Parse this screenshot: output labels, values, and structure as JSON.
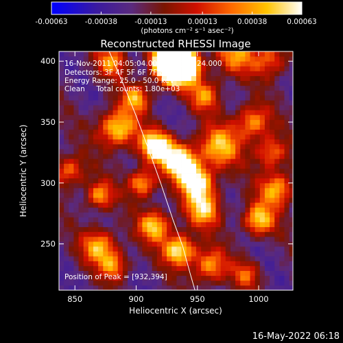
{
  "chart_data": {
    "type": "heatmap",
    "title": "Reconstructed RHESSI Image",
    "xlabel": "Heliocentric X (arcsec)",
    "ylabel": "Heliocentric Y (arcsec)",
    "xlim": [
      837,
      1028
    ],
    "ylim": [
      212,
      408
    ],
    "xticks": [
      850,
      900,
      950,
      1000
    ],
    "xtick_labels": [
      "850",
      "900",
      "950",
      "1000"
    ],
    "yticks": [
      250,
      300,
      350,
      400
    ],
    "ytick_labels": [
      "250",
      "300",
      "350",
      "400"
    ],
    "colorbar": {
      "range": [
        -0.00063,
        0.00063
      ],
      "ticks": [
        -0.00063,
        -0.00038,
        -0.00013,
        0.00013,
        0.00038,
        0.00063
      ],
      "tick_labels": [
        "-0.00063",
        "-0.00038",
        "-0.00013",
        "0.00013",
        "0.00038",
        "0.00063"
      ],
      "units_label": "(photons cm⁻² s⁻¹ asec⁻²)",
      "colormap": [
        "#0000ff",
        "#3a1aa0",
        "#5a2a7e",
        "#7a1500",
        "#d01000",
        "#ff6a00",
        "#ffc400",
        "#ffffff"
      ]
    },
    "annotations": [
      "16-Nov-2011 04:05:04.000 to 04:06:24.000",
      "Detectors: 3F 4F 5F 6F 7F 8F  Att 0",
      "Energy Range: 25.0 - 50.0 keV",
      "Clean     Total counts: 1.80e+03"
    ],
    "peak_label": "Position of Peak = [932,394]",
    "peak": {
      "x": 932,
      "y": 394
    },
    "limb_curve": {
      "x": [
        878,
        890,
        900,
        910,
        920,
        930,
        938,
        944,
        948
      ],
      "y": [
        408,
        380,
        355,
        328,
        300,
        270,
        248,
        226,
        212
      ]
    },
    "grid_spacing_arcsec": 4
  },
  "footer": {
    "timestamp": "16-May-2022 06:18"
  }
}
